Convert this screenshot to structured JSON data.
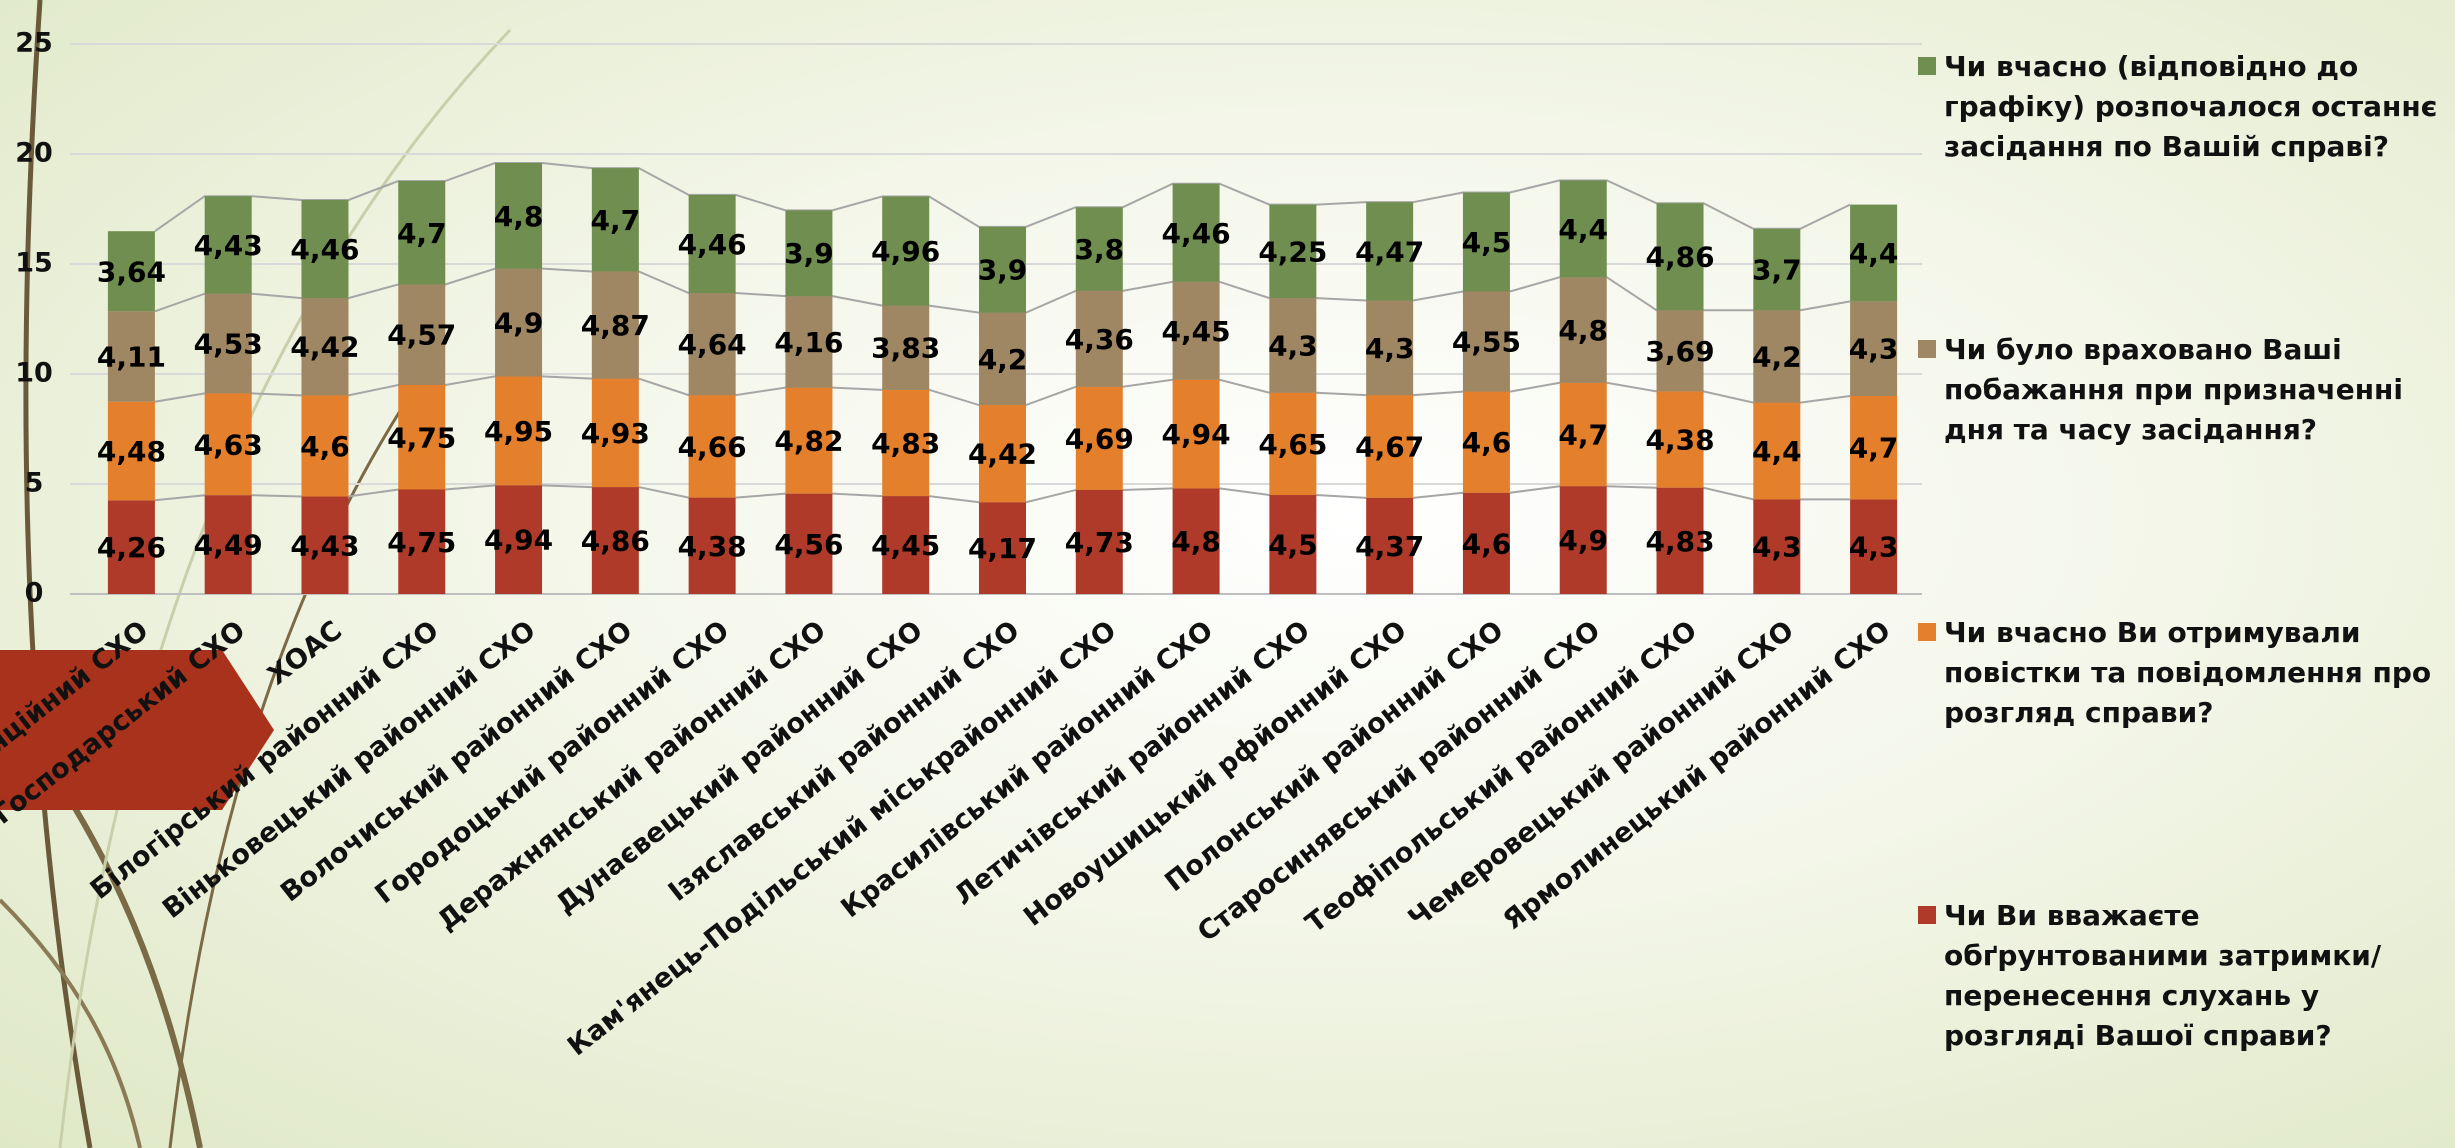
{
  "chart_data": {
    "type": "stacked-bar",
    "categories": [
      "Апеляційний СХО",
      "Господарський СХО",
      "ХОАС",
      "Білогірський районний СХО",
      "Віньковецький районний СХО",
      "Волочиський районний СХО",
      "Городоцький районний СХО",
      "Деражнянський районний СХО",
      "Дунаєвецький районний СХО",
      "Ізяславський районний СХО",
      "Кам'янець-Подільський міськрайонний СХО",
      "Красилівський районний СХО",
      "Летичівський районний СХО",
      "Новоушицький рфйонний СХО",
      "Полонський районний СХО",
      "Старосинявський районний СХО",
      "Теофіпольський районний СХО",
      "Чемеровецький районний СХО",
      "Ярмолинецький районний СХО"
    ],
    "series": [
      {
        "name": "Чи Ви вважаєте обґрунтованими затримки/перенесення слухань у розгляді Вашої справи?",
        "color": "#b03a2a",
        "values": [
          4.26,
          4.49,
          4.43,
          4.75,
          4.94,
          4.86,
          4.38,
          4.56,
          4.45,
          4.17,
          4.73,
          4.8,
          4.5,
          4.37,
          4.6,
          4.9,
          4.83,
          4.3,
          4.3
        ],
        "value_labels": [
          "4,26",
          "4,49",
          "4,43",
          "4,75",
          "4,94",
          "4,86",
          "4,38",
          "4,56",
          "4,45",
          "4,17",
          "4,73",
          "4,8",
          "4,5",
          "4,37",
          "4,6",
          "4,9",
          "4,83",
          "4,3",
          "4,3"
        ]
      },
      {
        "name": "Чи вчасно Ви отримували повістки та повідомлення про розгляд справи?",
        "color": "#e47f2c",
        "values": [
          4.48,
          4.63,
          4.6,
          4.75,
          4.95,
          4.93,
          4.66,
          4.82,
          4.83,
          4.42,
          4.69,
          4.94,
          4.65,
          4.67,
          4.6,
          4.7,
          4.38,
          4.4,
          4.7
        ],
        "value_labels": [
          "4,48",
          "4,63",
          "4,6",
          "4,75",
          "4,95",
          "4,93",
          "4,66",
          "4,82",
          "4,83",
          "4,42",
          "4,69",
          "4,94",
          "4,65",
          "4,67",
          "4,6",
          "4,7",
          "4,38",
          "4,4",
          "4,7"
        ]
      },
      {
        "name": "Чи було враховано Ваші побажання при призначенні дня та часу засідання?",
        "color": "#9e8762",
        "values": [
          4.11,
          4.53,
          4.42,
          4.57,
          4.9,
          4.87,
          4.64,
          4.16,
          3.83,
          4.2,
          4.36,
          4.45,
          4.3,
          4.3,
          4.55,
          4.8,
          3.69,
          4.2,
          4.3
        ],
        "value_labels": [
          "4,11",
          "4,53",
          "4,42",
          "4,57",
          "4,9",
          "4,87",
          "4,64",
          "4,16",
          "3,83",
          "4,2",
          "4,36",
          "4,45",
          "4,3",
          "4,3",
          "4,55",
          "4,8",
          "3,69",
          "4,2",
          "4,3"
        ]
      },
      {
        "name": "Чи вчасно (відповідно до графіку) розпочалося останнє засідання по Вашій справі?",
        "color": "#6f8e4f",
        "values": [
          3.64,
          4.43,
          4.46,
          4.7,
          4.8,
          4.7,
          4.46,
          3.9,
          4.96,
          3.9,
          3.8,
          4.46,
          4.25,
          4.47,
          4.5,
          4.4,
          4.86,
          3.7,
          4.4
        ],
        "value_labels": [
          "3,64",
          "4,43",
          "4,46",
          "4,7",
          "4,8",
          "4,7",
          "4,46",
          "3,9",
          "4,96",
          "3,9",
          "3,8",
          "4,46",
          "4,25",
          "4,47",
          "4,5",
          "4,4",
          "4,86",
          "3,7",
          "4,4"
        ]
      }
    ],
    "ylim": [
      0,
      25
    ],
    "yticks": [
      0,
      5,
      10,
      15,
      20,
      25
    ],
    "grid": true,
    "legend": "right"
  }
}
